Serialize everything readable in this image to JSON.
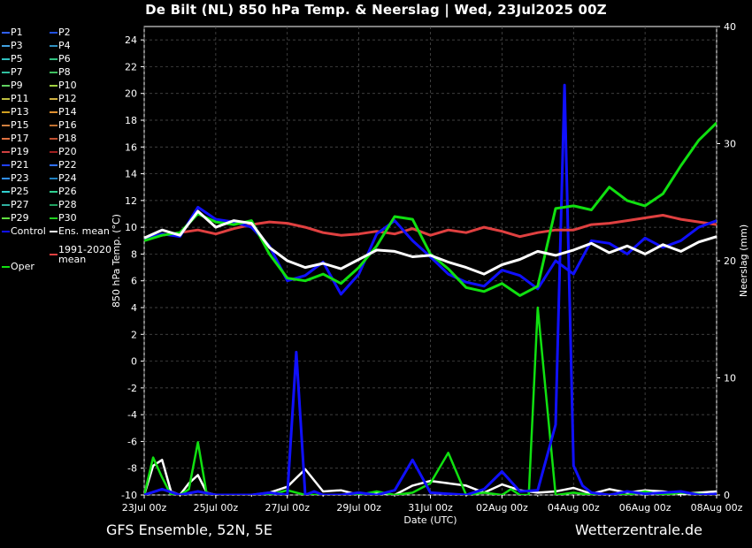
{
  "title": "De Bilt  (NL)  850 hPa Temp. & Neerslag | Wed, 23Jul2025 00Z",
  "footer_left": "GFS Ensemble, 52N, 5E",
  "footer_right": "Wetterzentrale.de",
  "chart_data": {
    "type": "line",
    "xlabel": "Date (UTC)",
    "ylabel_left": "850 hPa Temp. (°C)",
    "ylabel_right": "Neerslag (mm)",
    "ylim_left": [
      -10,
      25
    ],
    "ylim_right": [
      0,
      40
    ],
    "xlim": [
      0,
      16
    ],
    "grid": true,
    "yticks_left": [
      "-10",
      "-8",
      "-6",
      "-4",
      "-2",
      "0",
      "2",
      "4",
      "6",
      "8",
      "10",
      "12",
      "14",
      "16",
      "18",
      "20",
      "22",
      "24"
    ],
    "yticks_right": [
      "0",
      "10",
      "20",
      "30",
      "40"
    ],
    "xtick_labels": [
      "23Jul 00z",
      "25Jul 00z",
      "27Jul 00z",
      "29Jul 00z",
      "31Jul 00z",
      "02Aug 00z",
      "04Aug 00z",
      "06Aug 00z",
      "08Aug 00z"
    ],
    "legend": [
      {
        "label": "P1",
        "color": "#3060ff"
      },
      {
        "label": "P2",
        "color": "#2050e0"
      },
      {
        "label": "P3",
        "color": "#40a0e0"
      },
      {
        "label": "P4",
        "color": "#3090c0"
      },
      {
        "label": "P5",
        "color": "#30c0c0"
      },
      {
        "label": "P6",
        "color": "#30c080"
      },
      {
        "label": "P7",
        "color": "#30c0a0"
      },
      {
        "label": "P8",
        "color": "#40c060"
      },
      {
        "label": "P9",
        "color": "#60d060"
      },
      {
        "label": "P10",
        "color": "#a0d040"
      },
      {
        "label": "P11",
        "color": "#c0c040"
      },
      {
        "label": "P12",
        "color": "#d0b040"
      },
      {
        "label": "P13",
        "color": "#d0a020"
      },
      {
        "label": "P14",
        "color": "#e09030"
      },
      {
        "label": "P15",
        "color": "#d08040"
      },
      {
        "label": "P16",
        "color": "#c07030"
      },
      {
        "label": "P17",
        "color": "#e07040"
      },
      {
        "label": "P18",
        "color": "#c05030"
      },
      {
        "label": "P19",
        "color": "#d04040"
      },
      {
        "label": "P20",
        "color": "#a02020"
      },
      {
        "label": "P21",
        "color": "#2040ff"
      },
      {
        "label": "P22",
        "color": "#3070ff"
      },
      {
        "label": "P23",
        "color": "#3090ff"
      },
      {
        "label": "P24",
        "color": "#2080c0"
      },
      {
        "label": "P25",
        "color": "#30d0d0"
      },
      {
        "label": "P26",
        "color": "#30d090"
      },
      {
        "label": "P27",
        "color": "#30b0a0"
      },
      {
        "label": "P28",
        "color": "#20a060"
      },
      {
        "label": "P29",
        "color": "#60e040"
      },
      {
        "label": "P30",
        "color": "#20d020"
      },
      {
        "label": "Control",
        "color": "#1010ff"
      },
      {
        "label": "Ens. mean",
        "color": "#ffffff"
      },
      {
        "label": "Oper",
        "color": "#10e010"
      },
      {
        "label": "1991-2020 mean",
        "color": "#e04040"
      }
    ],
    "series_mean": {
      "name": "Ens. mean",
      "color": "#ffffff",
      "x": [
        0,
        0.5,
        1,
        1.5,
        2,
        2.5,
        3,
        3.5,
        4,
        4.5,
        5,
        5.5,
        6,
        6.5,
        7,
        7.5,
        8,
        8.5,
        9,
        9.5,
        10,
        10.5,
        11,
        11.5,
        12,
        12.5,
        13,
        13.5,
        14,
        14.5,
        15,
        15.5,
        16
      ],
      "y": [
        9.2,
        9.8,
        9.4,
        11.2,
        10.0,
        10.5,
        10.3,
        8.5,
        7.5,
        7.0,
        7.3,
        6.9,
        7.6,
        8.3,
        8.2,
        7.8,
        7.9,
        7.4,
        7.0,
        6.5,
        7.2,
        7.6,
        8.2,
        7.9,
        8.3,
        8.8,
        8.1,
        8.6,
        8.0,
        8.7,
        8.2,
        8.9,
        9.3
      ]
    },
    "series_climate": {
      "name": "1991-2020 mean",
      "color": "#e04040",
      "x": [
        0,
        0.5,
        1,
        1.5,
        2,
        2.5,
        3,
        3.5,
        4,
        4.5,
        5,
        5.5,
        6,
        6.5,
        7,
        7.5,
        8,
        8.5,
        9,
        9.5,
        10,
        10.5,
        11,
        11.5,
        12,
        12.5,
        13,
        13.5,
        14,
        14.5,
        15,
        15.5,
        16
      ],
      "y": [
        9.2,
        9.4,
        9.6,
        9.8,
        9.5,
        9.9,
        10.2,
        10.4,
        10.3,
        10.0,
        9.6,
        9.4,
        9.5,
        9.7,
        9.5,
        9.9,
        9.4,
        9.8,
        9.6,
        10.0,
        9.7,
        9.3,
        9.6,
        9.8,
        9.8,
        10.2,
        10.3,
        10.5,
        10.7,
        10.9,
        10.6,
        10.4,
        10.2
      ]
    },
    "series_oper": {
      "name": "Oper",
      "color": "#10e010",
      "x": [
        0,
        0.5,
        1,
        1.5,
        2,
        2.5,
        3,
        3.5,
        4,
        4.5,
        5,
        5.5,
        6,
        6.5,
        7,
        7.5,
        8,
        8.5,
        9,
        9.5,
        10,
        10.5,
        11,
        11.5,
        12,
        12.5,
        13,
        13.5,
        14,
        14.5,
        15,
        15.5,
        16
      ],
      "y": [
        9.0,
        9.4,
        9.6,
        11.0,
        10.4,
        10.2,
        10.5,
        8.0,
        6.2,
        6.0,
        6.5,
        5.8,
        7.0,
        8.6,
        10.8,
        10.6,
        8.0,
        6.9,
        5.5,
        5.2,
        5.8,
        4.9,
        5.6,
        11.4,
        11.6,
        11.3,
        13.0,
        12.0,
        11.6,
        12.5,
        14.6,
        16.5,
        17.8
      ]
    },
    "series_control": {
      "name": "Control",
      "color": "#1010ff",
      "x": [
        0,
        0.5,
        1,
        1.5,
        2,
        2.5,
        3,
        3.5,
        4,
        4.5,
        5,
        5.5,
        6,
        6.5,
        7,
        7.5,
        8,
        8.5,
        9,
        9.5,
        10,
        10.5,
        11,
        11.5,
        12,
        12.5,
        13,
        13.5,
        14,
        14.5,
        15,
        15.5,
        16
      ],
      "y": [
        9.1,
        9.5,
        9.3,
        11.5,
        10.6,
        10.4,
        10.0,
        8.6,
        6.0,
        6.4,
        7.4,
        5.0,
        6.5,
        9.5,
        10.5,
        9.0,
        7.8,
        6.5,
        5.9,
        5.6,
        6.8,
        6.4,
        5.4,
        7.5,
        6.5,
        9.0,
        8.8,
        8.0,
        9.2,
        8.5,
        9.0,
        10.0,
        10.5
      ]
    },
    "precip_mean": {
      "name": "Ens. mean",
      "color": "#ffffff",
      "x": [
        0,
        0.25,
        0.5,
        0.75,
        1,
        1.25,
        1.5,
        1.75,
        2,
        2.5,
        3,
        3.5,
        4,
        4.5,
        5,
        5.5,
        6,
        6.5,
        7,
        7.5,
        8,
        8.5,
        9,
        9.5,
        10,
        10.5,
        11,
        11.5,
        12,
        12.5,
        13,
        13.5,
        14,
        14.5,
        15,
        15.5,
        16
      ],
      "y": [
        0,
        2.5,
        3.0,
        0.3,
        0,
        1.0,
        1.7,
        0.2,
        0,
        0,
        0,
        0.2,
        0.7,
        2.2,
        0.3,
        0.4,
        0,
        0.2,
        0,
        0.8,
        1.2,
        1.0,
        0.8,
        0.2,
        0.9,
        0.4,
        0.2,
        0.3,
        0.6,
        0.1,
        0.5,
        0.2,
        0.4,
        0.3,
        0.1,
        0.2,
        0.3
      ]
    },
    "precip_oper": {
      "name": "Oper",
      "color": "#10e010",
      "x": [
        0,
        0.25,
        0.5,
        0.75,
        1,
        1.25,
        1.5,
        1.75,
        2,
        2.5,
        3,
        3.5,
        4,
        4.5,
        5,
        5.5,
        6,
        6.5,
        7,
        7.5,
        8,
        8.5,
        9,
        9.5,
        10,
        10.25,
        10.5,
        10.75,
        11,
        11.5,
        12,
        12.5,
        13,
        13.5,
        14,
        14.5,
        15,
        15.5,
        16
      ],
      "y": [
        0,
        3.2,
        1.5,
        0,
        0,
        0.5,
        4.5,
        0,
        0,
        0,
        0,
        0,
        0.4,
        0,
        0,
        0,
        0,
        0.3,
        0,
        0.2,
        1.0,
        3.6,
        0,
        0.2,
        0,
        0.5,
        0,
        0,
        16.0,
        0,
        0.2,
        0,
        0,
        0,
        0.3,
        0,
        0.2,
        0.1,
        0
      ]
    },
    "precip_control": {
      "name": "Control",
      "color": "#1010ff",
      "x": [
        0,
        0.5,
        1,
        1.5,
        2,
        2.5,
        3,
        3.5,
        4,
        4.25,
        4.5,
        4.75,
        5,
        5.5,
        6,
        6.5,
        7,
        7.5,
        8,
        8.5,
        9,
        9.5,
        10,
        10.5,
        11,
        11.5,
        11.75,
        12,
        12.25,
        12.5,
        13,
        13.5,
        14,
        14.5,
        15,
        15.5,
        16
      ],
      "y": [
        0,
        0.5,
        0,
        0.3,
        0,
        0,
        0,
        0.2,
        0,
        12.2,
        0,
        0.3,
        0,
        0,
        0.2,
        0,
        0.4,
        3.0,
        0.2,
        0.1,
        0,
        0.5,
        2.0,
        0.3,
        0.4,
        6.0,
        35.0,
        2.5,
        0.8,
        0.2,
        0,
        0.3,
        0.1,
        0.2,
        0.3,
        0,
        0.1
      ]
    }
  }
}
